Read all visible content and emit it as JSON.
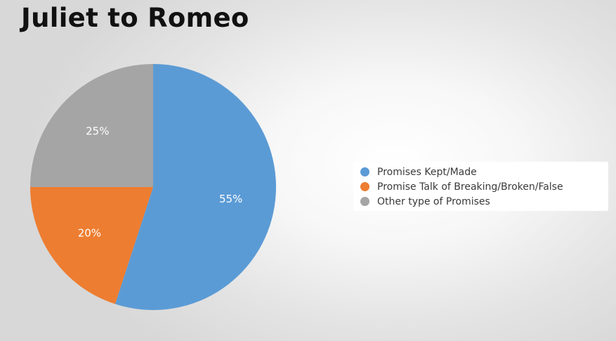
{
  "chart_data": {
    "type": "pie",
    "title": "Juliet to Romeo",
    "legend_position": "right",
    "slices": [
      {
        "name": "Promises Kept/Made",
        "value": 55,
        "label": "55%",
        "color": "#5b9bd5"
      },
      {
        "name": "Promise Talk of Breaking/Broken/False",
        "value": 20,
        "label": "20%",
        "color": "#ed7d31"
      },
      {
        "name": "Other type of Promises",
        "value": 25,
        "label": "25%",
        "color": "#a5a5a5"
      }
    ]
  }
}
